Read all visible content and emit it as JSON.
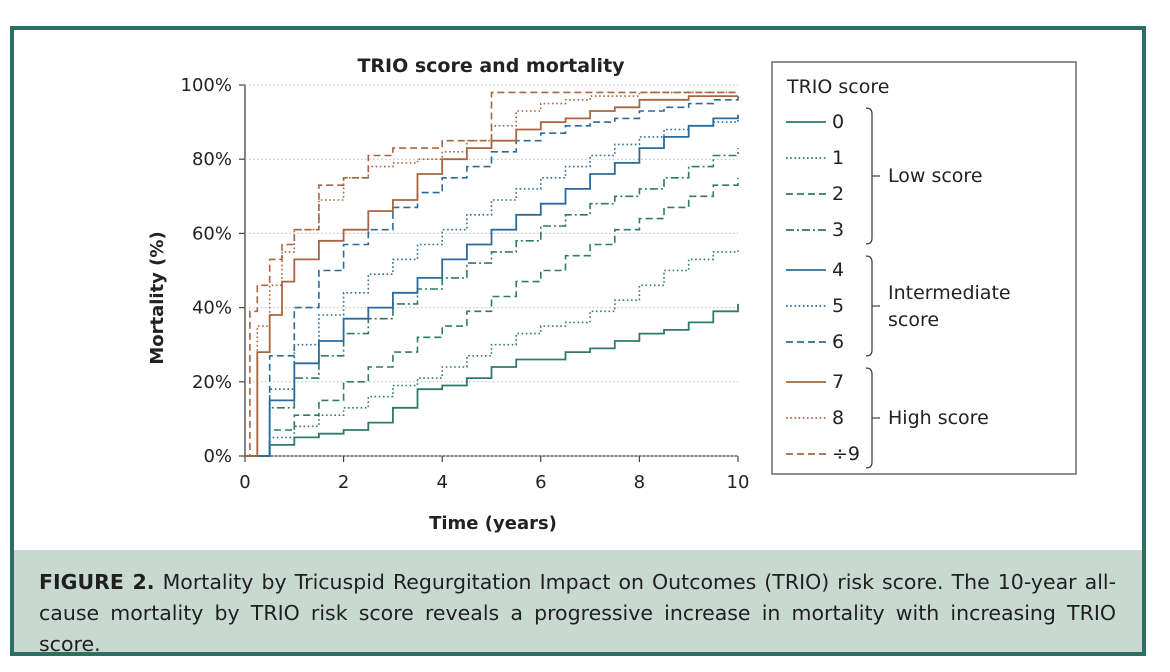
{
  "caption": {
    "label": "FIGURE 2.",
    "text": "Mortality by Tricuspid Regurgitation Impact on Outcomes (TRIO) risk score. The 10-year all-cause mortality by TRIO risk score reveals a progressive increase in mortality with increasing TRIO score."
  },
  "colors": {
    "frame": "#2f6e62",
    "caption_bg": "#c8d9d2",
    "teal": "#2f7a6a",
    "blue": "#2b6a9c",
    "brown": "#a86540"
  },
  "chart_data": {
    "type": "line",
    "title": "TRIO score and mortality",
    "xlabel": "Time (years)",
    "ylabel": "Mortality (%)",
    "xlim": [
      0,
      10
    ],
    "ylim": [
      0,
      100
    ],
    "xticks": [
      "0",
      "2",
      "4",
      "6",
      "8",
      "10"
    ],
    "yticks": [
      "0%",
      "20%",
      "40%",
      "60%",
      "80%",
      "100%"
    ],
    "legend_title": "TRIO score",
    "groups": [
      {
        "label": "Low score",
        "members": [
          "0",
          "1",
          "2",
          "3"
        ]
      },
      {
        "label": "Intermediate score",
        "members": [
          "4",
          "5",
          "6"
        ]
      },
      {
        "label": "High score",
        "members": [
          "7",
          "8",
          "÷9"
        ]
      }
    ],
    "series": [
      {
        "name": "0",
        "color": "#2f7a6a",
        "dash": "solid",
        "x": [
          0,
          0.5,
          1,
          1.5,
          2,
          2.5,
          3,
          3.5,
          4,
          4.5,
          5,
          5.5,
          6,
          6.5,
          7,
          7.5,
          8,
          8.5,
          9,
          9.5,
          10
        ],
        "y": [
          0,
          3,
          5,
          6,
          7,
          9,
          13,
          18,
          19,
          21,
          24,
          26,
          26,
          28,
          29,
          31,
          33,
          34,
          36,
          39,
          41
        ]
      },
      {
        "name": "1",
        "color": "#2f7a6a",
        "dash": "dotted",
        "x": [
          0,
          0.5,
          1,
          1.5,
          2,
          2.5,
          3,
          3.5,
          4,
          4.5,
          5,
          5.5,
          6,
          6.5,
          7,
          7.5,
          8,
          8.5,
          9,
          9.5,
          10
        ],
        "y": [
          0,
          5,
          8,
          11,
          13,
          16,
          19,
          21,
          24,
          27,
          30,
          33,
          35,
          36,
          39,
          42,
          46,
          50,
          53,
          55,
          56
        ]
      },
      {
        "name": "2",
        "color": "#2f7a6a",
        "dash": "dashed",
        "x": [
          0,
          0.5,
          1,
          1.5,
          2,
          2.5,
          3,
          3.5,
          4,
          4.5,
          5,
          5.5,
          6,
          6.5,
          7,
          7.5,
          8,
          8.5,
          9,
          9.5,
          10
        ],
        "y": [
          0,
          7,
          11,
          15,
          20,
          24,
          28,
          32,
          35,
          39,
          43,
          47,
          50,
          54,
          57,
          61,
          64,
          67,
          70,
          73,
          75
        ]
      },
      {
        "name": "3",
        "color": "#2f7a6a",
        "dash": "dashdot",
        "x": [
          0,
          0.5,
          1,
          1.5,
          2,
          2.5,
          3,
          3.5,
          4,
          4.5,
          5,
          5.5,
          6,
          6.5,
          7,
          7.5,
          8,
          8.5,
          9,
          9.5,
          10
        ],
        "y": [
          0,
          13,
          21,
          27,
          33,
          37,
          41,
          45,
          48,
          52,
          55,
          58,
          62,
          65,
          68,
          70,
          72,
          75,
          78,
          81,
          83
        ]
      },
      {
        "name": "4",
        "color": "#2b6a9c",
        "dash": "solid",
        "x": [
          0,
          0.5,
          1,
          1.5,
          2,
          2.5,
          3,
          3.5,
          4,
          4.5,
          5,
          5.5,
          6,
          6.5,
          7,
          7.5,
          8,
          8.5,
          9,
          9.5,
          10
        ],
        "y": [
          0,
          15,
          25,
          31,
          37,
          40,
          44,
          48,
          53,
          57,
          61,
          65,
          68,
          72,
          76,
          79,
          83,
          86,
          89,
          91,
          92
        ]
      },
      {
        "name": "5",
        "color": "#2b6a9c",
        "dash": "dotted",
        "x": [
          0,
          0.5,
          1,
          1.5,
          2,
          2.5,
          3,
          3.5,
          4,
          4.5,
          5,
          5.5,
          6,
          6.5,
          7,
          7.5,
          8,
          8.5,
          9,
          9.5,
          10
        ],
        "y": [
          0,
          18,
          30,
          38,
          44,
          49,
          53,
          57,
          61,
          65,
          69,
          72,
          75,
          78,
          81,
          84,
          86,
          88,
          89,
          90,
          91
        ]
      },
      {
        "name": "6",
        "color": "#2b6a9c",
        "dash": "dashed",
        "x": [
          0,
          0.5,
          1,
          1.5,
          2,
          2.5,
          3,
          3.5,
          4,
          4.5,
          5,
          5.5,
          6,
          6.5,
          7,
          7.5,
          8,
          8.5,
          9,
          9.5,
          10
        ],
        "y": [
          0,
          27,
          40,
          50,
          57,
          61,
          67,
          71,
          75,
          78,
          82,
          85,
          87,
          89,
          90,
          91,
          93,
          94,
          95,
          96,
          97
        ]
      },
      {
        "name": "7",
        "color": "#a86540",
        "dash": "solid",
        "x": [
          0,
          0.25,
          0.5,
          0.75,
          1,
          1.5,
          2,
          2.5,
          3,
          3.5,
          4,
          4.5,
          5,
          5.5,
          6,
          6.5,
          7,
          7.5,
          8,
          9,
          10
        ],
        "y": [
          0,
          28,
          38,
          47,
          53,
          58,
          61,
          66,
          69,
          76,
          80,
          83,
          85,
          88,
          90,
          91,
          93,
          94,
          96,
          97,
          97
        ]
      },
      {
        "name": "8",
        "color": "#a86540",
        "dash": "dotted",
        "x": [
          0,
          0.25,
          0.5,
          0.75,
          1,
          1.5,
          2,
          2.5,
          3,
          3.5,
          4,
          4.5,
          5,
          5.5,
          6,
          6.5,
          7,
          7.5,
          8,
          9,
          10
        ],
        "y": [
          0,
          35,
          46,
          55,
          61,
          69,
          75,
          78,
          79,
          80,
          82,
          85,
          89,
          93,
          95,
          96,
          97,
          97,
          98,
          98,
          98
        ]
      },
      {
        "name": "÷9",
        "color": "#a86540",
        "dash": "dashed",
        "x": [
          0,
          0.1,
          0.25,
          0.5,
          0.75,
          1,
          1.5,
          2,
          2.5,
          3,
          3.5,
          4,
          4.5,
          5,
          5.5,
          6,
          7,
          8,
          9,
          10
        ],
        "y": [
          0,
          39,
          46,
          53,
          57,
          61,
          73,
          75,
          81,
          83,
          83,
          85,
          85,
          98,
          98,
          98,
          98,
          98,
          98,
          98
        ]
      }
    ]
  }
}
